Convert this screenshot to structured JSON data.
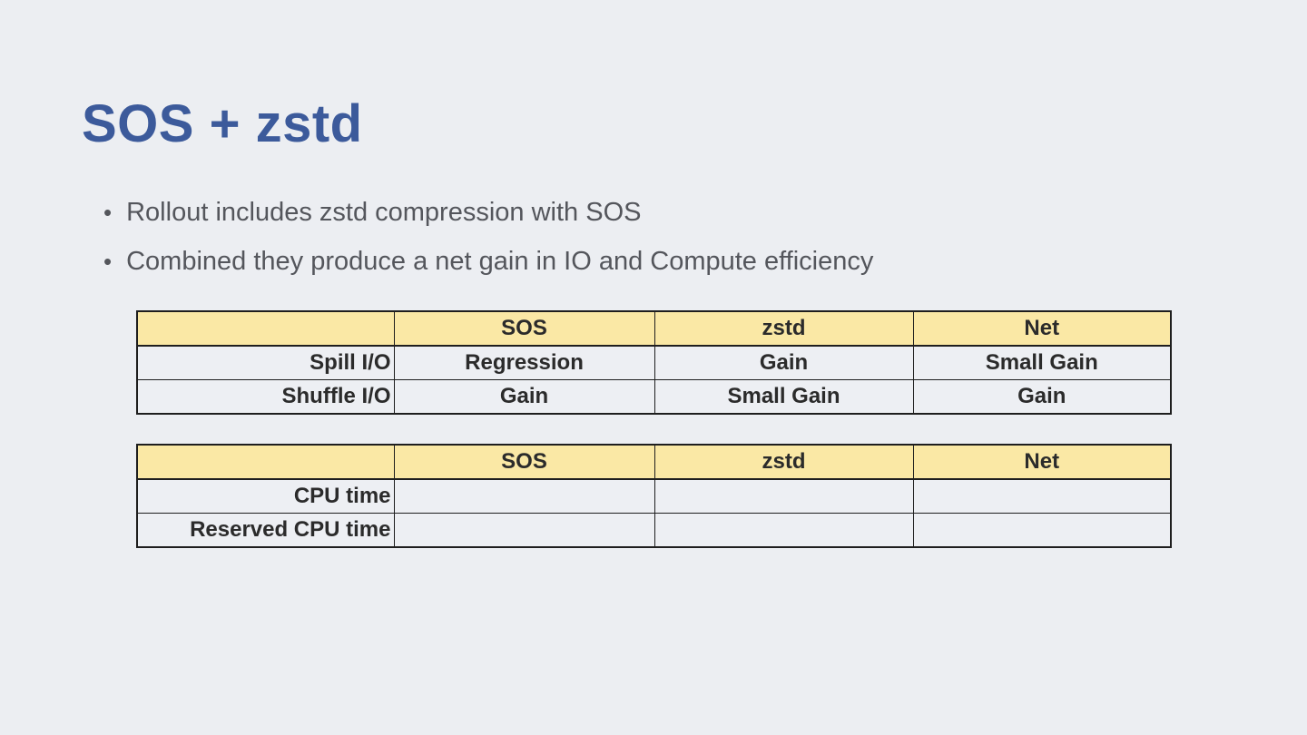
{
  "slide": {
    "title": "SOS + zstd",
    "bullets": [
      {
        "marker": "•",
        "text": "Rollout includes zstd compression with SOS"
      },
      {
        "marker": "•",
        "text": "Combined they produce a net gain in IO and Compute efficiency"
      }
    ],
    "colors": {
      "background": "#ECEEF2",
      "title": "#3C5A9B",
      "bullet_text": "#54565C",
      "table_header_bg": "#FAE8A5",
      "table_body_bg": "#EDEFF3",
      "table_border": "#1E1E1E",
      "table_text": "#2B2B2B",
      "negative": "#EC1C24",
      "positive": "#00A551"
    },
    "tables": [
      {
        "headers": [
          "",
          "SOS",
          "zstd",
          "Net"
        ],
        "rows": [
          {
            "label": "Spill I/O",
            "cells": [
              {
                "text": "Regression",
                "status": "negative"
              },
              {
                "text": "Gain",
                "status": "positive"
              },
              {
                "text": "Small Gain",
                "status": "positive"
              }
            ]
          },
          {
            "label": "Shuffle I/O",
            "cells": [
              {
                "text": "Gain",
                "status": "positive"
              },
              {
                "text": "Small Gain",
                "status": "positive"
              },
              {
                "text": "Gain",
                "status": "positive"
              }
            ]
          }
        ]
      },
      {
        "headers": [
          "",
          "SOS",
          "zstd",
          "Net"
        ],
        "rows": [
          {
            "label": "CPU time",
            "cells": [
              {
                "text": "",
                "status": "none"
              },
              {
                "text": "",
                "status": "none"
              },
              {
                "text": "",
                "status": "none"
              }
            ]
          },
          {
            "label": "Reserved CPU time",
            "cells": [
              {
                "text": "",
                "status": "none"
              },
              {
                "text": "",
                "status": "none"
              },
              {
                "text": "",
                "status": "none"
              }
            ]
          }
        ]
      }
    ]
  }
}
